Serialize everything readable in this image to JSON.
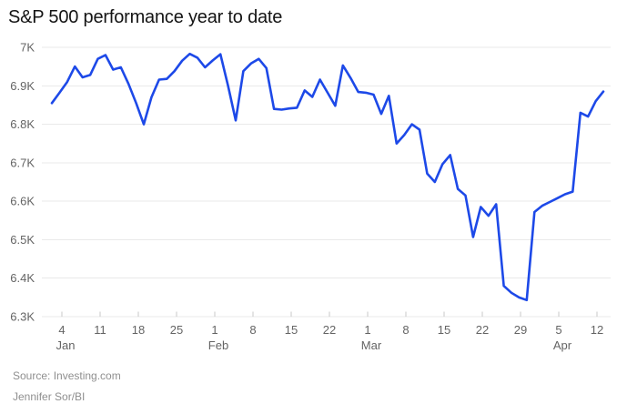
{
  "page": {
    "title": "S&P 500 performance year to date",
    "source": "Source: Investing.com",
    "byline": "Jennifer Sor/BI"
  },
  "chart_data": {
    "type": "line",
    "title": "S&P 500 performance year to date",
    "legend": "none",
    "grid": "horizontal",
    "line_color": "#1d49e8",
    "grid_color": "#e9e9e9",
    "tick_color": "#c9c9c9",
    "axis_label_color": "#646464",
    "ylim": [
      6.3,
      7.0
    ],
    "y_ticks": [
      {
        "label": "7K",
        "value": 7.0
      },
      {
        "label": "6.9K",
        "value": 6.9
      },
      {
        "label": "6.8K",
        "value": 6.8
      },
      {
        "label": "6.7K",
        "value": 6.7
      },
      {
        "label": "6.6K",
        "value": 6.6
      },
      {
        "label": "6.5K",
        "value": 6.5
      },
      {
        "label": "6.4K",
        "value": 6.4
      },
      {
        "label": "6.3K",
        "value": 6.3
      }
    ],
    "x_ticks": [
      {
        "day": "4",
        "month": "Jan"
      },
      {
        "day": "11",
        "month": ""
      },
      {
        "day": "18",
        "month": ""
      },
      {
        "day": "25",
        "month": ""
      },
      {
        "day": "1",
        "month": "Feb"
      },
      {
        "day": "8",
        "month": ""
      },
      {
        "day": "15",
        "month": ""
      },
      {
        "day": "22",
        "month": ""
      },
      {
        "day": "1",
        "month": "Mar"
      },
      {
        "day": "8",
        "month": ""
      },
      {
        "day": "15",
        "month": ""
      },
      {
        "day": "22",
        "month": ""
      },
      {
        "day": "29",
        "month": ""
      },
      {
        "day": "5",
        "month": "Apr"
      },
      {
        "day": "12",
        "month": ""
      }
    ],
    "series": [
      {
        "name": "S&P 500",
        "values": [
          6.855,
          6.882,
          6.91,
          6.95,
          6.922,
          6.928,
          6.97,
          6.98,
          6.942,
          6.948,
          6.905,
          6.855,
          6.8,
          6.87,
          6.916,
          6.918,
          6.938,
          6.965,
          6.983,
          6.973,
          6.948,
          6.966,
          6.982,
          6.9,
          6.81,
          6.938,
          6.958,
          6.97,
          6.946,
          6.84,
          6.838,
          6.841,
          6.843,
          6.888,
          6.871,
          6.916,
          6.882,
          6.848,
          6.953,
          6.92,
          6.884,
          6.882,
          6.877,
          6.827,
          6.874,
          6.75,
          6.772,
          6.8,
          6.786,
          6.672,
          6.65,
          6.696,
          6.72,
          6.632,
          6.615,
          6.507,
          6.585,
          6.562,
          6.592,
          6.38,
          6.362,
          6.35,
          6.343,
          6.572,
          6.588,
          6.598,
          6.608,
          6.618,
          6.625,
          6.83,
          6.82,
          6.86,
          6.885
        ]
      }
    ]
  }
}
